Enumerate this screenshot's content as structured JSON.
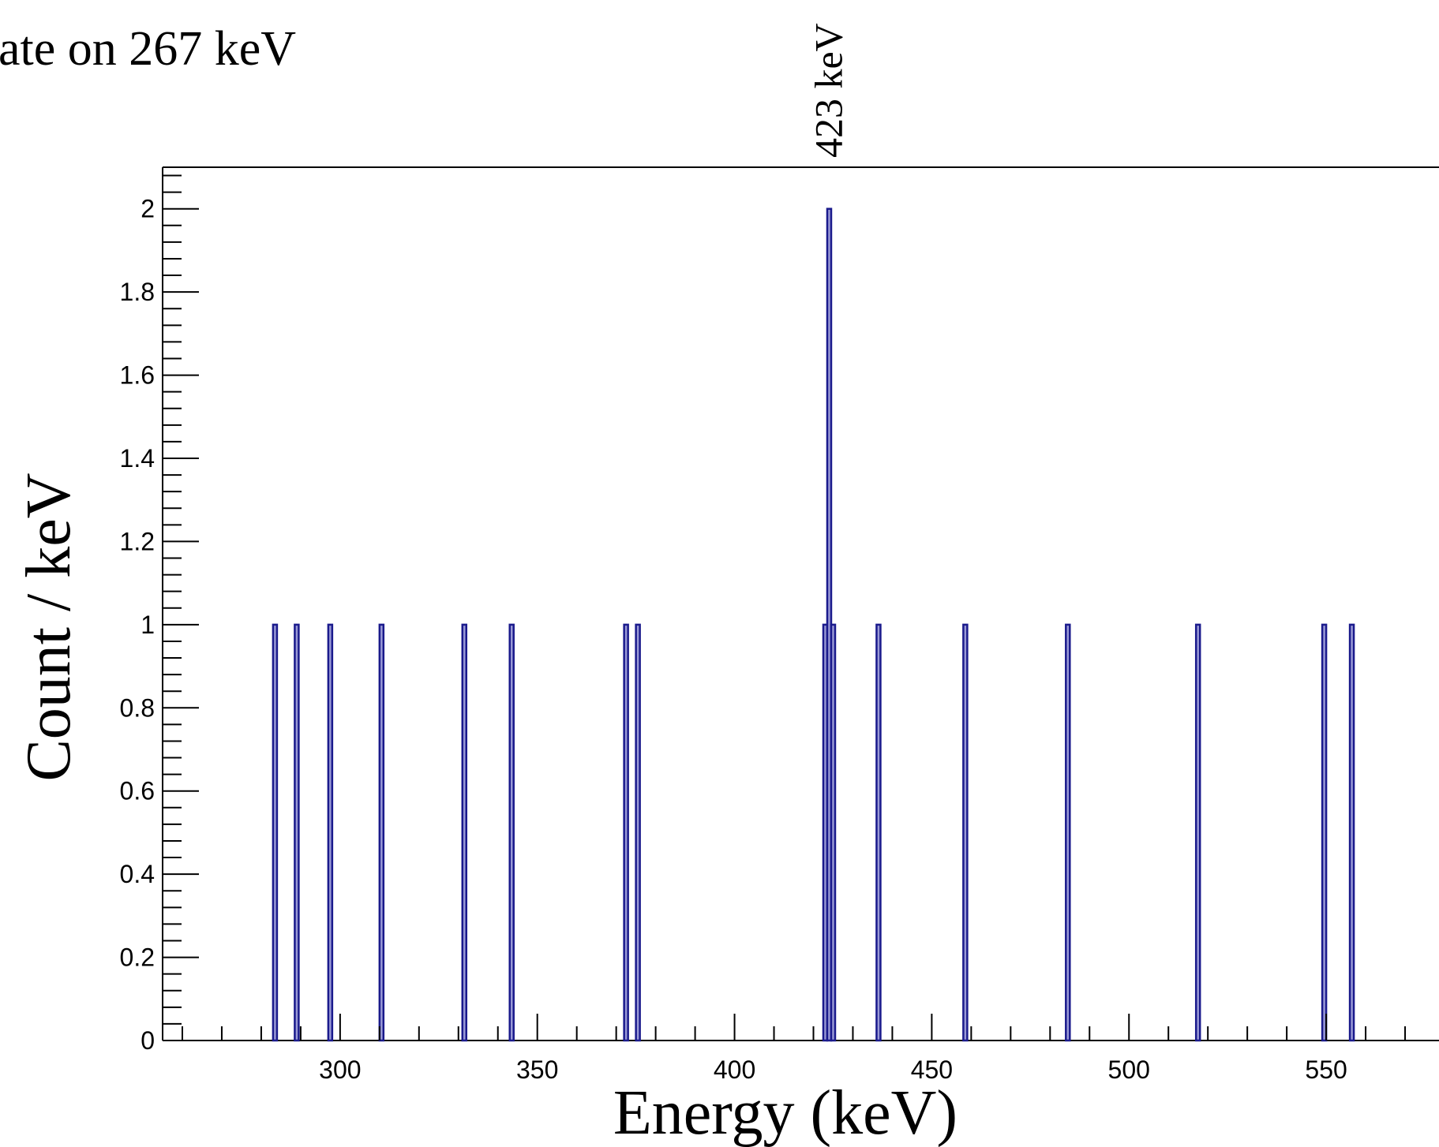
{
  "chart_data": {
    "type": "bar",
    "title": "ate on 267 keV",
    "xlabel": "Energy (keV)",
    "ylabel": "Count / keV",
    "xlim": [
      255,
      580
    ],
    "ylim": [
      0,
      2.1
    ],
    "x_ticks": [
      300,
      350,
      400,
      450,
      500,
      550
    ],
    "y_ticks": [
      0,
      0.2,
      0.4,
      0.6,
      0.8,
      1,
      1.2,
      1.4,
      1.6,
      1.8,
      2
    ],
    "y_tick_labels": [
      "0",
      "0.2",
      "0.4",
      "0.6",
      "0.8",
      "1",
      "1.2",
      "1.4",
      "1.6",
      "1.8",
      "2"
    ],
    "bin_width": 1,
    "bins": [
      {
        "x": 283.5,
        "value": 1
      },
      {
        "x": 289.0,
        "value": 1
      },
      {
        "x": 297.5,
        "value": 1
      },
      {
        "x": 310.5,
        "value": 1
      },
      {
        "x": 331.5,
        "value": 1
      },
      {
        "x": 343.5,
        "value": 1
      },
      {
        "x": 372.5,
        "value": 1
      },
      {
        "x": 375.5,
        "value": 1
      },
      {
        "x": 423.0,
        "value": 1
      },
      {
        "x": 424.0,
        "value": 2
      },
      {
        "x": 425.0,
        "value": 1
      },
      {
        "x": 436.5,
        "value": 1
      },
      {
        "x": 458.5,
        "value": 1
      },
      {
        "x": 484.5,
        "value": 1
      },
      {
        "x": 517.5,
        "value": 1
      },
      {
        "x": 549.5,
        "value": 1
      },
      {
        "x": 556.5,
        "value": 1
      }
    ],
    "annotations": [
      {
        "text": "423 keV",
        "x": 424,
        "value": 2
      }
    ],
    "colors": {
      "bar_fill": "#9a9ad6",
      "bar_stroke": "#1a1a8c",
      "axis": "#000000"
    },
    "grid": false,
    "legend": "none"
  }
}
